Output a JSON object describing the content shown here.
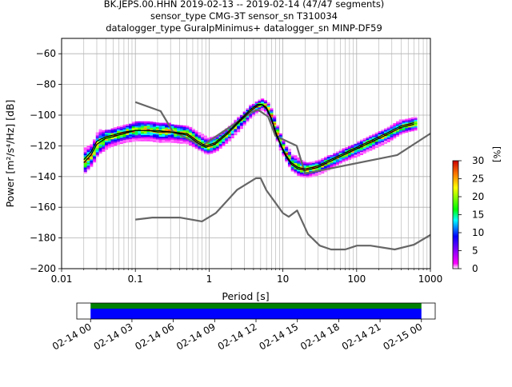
{
  "title": {
    "line1": "BK.JEPS.00.HHN   2019-02-13 -- 2019-02-14  (47/47 segments)",
    "line2": "sensor_type CMG-3T sensor_sn T310034",
    "line3": "datalogger_type GuralpMinimus+ datalogger_sn MINP-DF59"
  },
  "chart_data": [
    {
      "type": "heatmap",
      "title": "BK.JEPS.00.HHN   2019-02-13 -- 2019-02-14  (47/47 segments)",
      "xlabel": "Period [s]",
      "ylabel": "Power [m²/s⁴/Hz] [dB]",
      "xscale": "log",
      "xlim": [
        0.01,
        1000
      ],
      "ylim": [
        -200,
        -50
      ],
      "x_ticks": [
        0.01,
        0.1,
        1,
        10,
        100,
        1000
      ],
      "x_tick_labels": [
        "0.01",
        "0.1",
        "1",
        "10",
        "100",
        "1000"
      ],
      "y_ticks": [
        -200,
        -180,
        -160,
        -140,
        -120,
        -100,
        -80,
        -60
      ],
      "y_tick_labels": [
        "−200",
        "−180",
        "−160",
        "−140",
        "−120",
        "−100",
        "−80",
        "−60"
      ],
      "grid": true,
      "colorbar": {
        "label": "[%]",
        "range": [
          0,
          30
        ],
        "ticks": [
          0,
          5,
          10,
          15,
          20,
          25,
          30
        ],
        "colormap": "pqlx"
      },
      "mode_curve": {
        "period": [
          0.02,
          0.025,
          0.03,
          0.04,
          0.05,
          0.07,
          0.1,
          0.15,
          0.2,
          0.3,
          0.5,
          0.7,
          0.9,
          1.2,
          1.8,
          2.5,
          3.5,
          4.5,
          5.2,
          6,
          7,
          8,
          9,
          10,
          11,
          13,
          16,
          20,
          25,
          30,
          40,
          60,
          100,
          150,
          250,
          400,
          600
        ],
        "power_db": [
          -131,
          -126,
          -119,
          -115,
          -114,
          -112,
          -110,
          -110,
          -111,
          -111,
          -113,
          -118,
          -121,
          -119,
          -112,
          -105,
          -98,
          -94,
          -93,
          -96,
          -103,
          -112,
          -118,
          -123,
          -127,
          -132,
          -135,
          -136,
          -135,
          -134,
          -131,
          -127,
          -122,
          -118,
          -113,
          -108,
          -106
        ]
      },
      "mean_curve": {
        "period": [
          0.02,
          0.025,
          0.03,
          0.04,
          0.05,
          0.07,
          0.1,
          0.15,
          0.2,
          0.3,
          0.5,
          0.7,
          0.9,
          1.2,
          1.8,
          2.5,
          3.5,
          4.5,
          5.2,
          6,
          7,
          8,
          9,
          10,
          11,
          13,
          16,
          20,
          25,
          30,
          40,
          60,
          100,
          150,
          250,
          400,
          600
        ],
        "power_db": [
          -129,
          -124,
          -117,
          -114,
          -113,
          -111,
          -110,
          -110,
          -110,
          -111,
          -112,
          -117,
          -120,
          -118,
          -111,
          -104,
          -97,
          -93,
          -93,
          -95,
          -102,
          -111,
          -117,
          -122,
          -126,
          -131,
          -134,
          -135,
          -134,
          -133,
          -130,
          -126,
          -121,
          -117,
          -112,
          -107,
          -105
        ]
      },
      "nhnm": {
        "period": [
          0.1,
          0.22,
          0.32,
          0.8,
          3.8,
          4.6,
          6.3,
          7.9,
          15.4,
          20,
          354.8,
          1000
        ],
        "power_db": [
          -91.5,
          -97.4,
          -110.5,
          -120,
          -98,
          -96.5,
          -101,
          -113.5,
          -120,
          -138,
          -126,
          -112
        ]
      },
      "nlnm": {
        "period": [
          0.1,
          0.17,
          0.4,
          0.8,
          1.24,
          2.4,
          4.3,
          5,
          6,
          10,
          12,
          15.6,
          21.9,
          31.6,
          45,
          70,
          101,
          154,
          328,
          600,
          1000
        ],
        "power_db": [
          -168,
          -166.7,
          -166.7,
          -169.2,
          -163.7,
          -148.6,
          -141.1,
          -141.1,
          -149,
          -163.8,
          -166.2,
          -162.1,
          -177.5,
          -185,
          -187.5,
          -187.5,
          -185,
          -185,
          -187.5,
          -184.4,
          -178
        ]
      },
      "density_band": {
        "period": [
          0.02,
          0.025,
          0.03,
          0.04,
          0.05,
          0.07,
          0.1,
          0.15,
          0.2,
          0.3,
          0.5,
          0.7,
          0.9,
          1.2,
          1.8,
          2.5,
          3.5,
          4.5,
          5.2,
          6,
          7,
          8,
          9,
          10,
          11,
          13,
          16,
          20,
          25,
          30,
          40,
          60,
          100,
          150,
          250,
          400,
          600
        ],
        "upper_db": [
          -122,
          -119,
          -110,
          -110,
          -109,
          -107,
          -104,
          -105,
          -105,
          -106,
          -108,
          -112,
          -115,
          -114,
          -108,
          -101,
          -94,
          -91,
          -90,
          -92,
          -98,
          -107,
          -113,
          -118,
          -121,
          -126,
          -129,
          -131,
          -131,
          -130,
          -127,
          -123,
          -118,
          -114,
          -109,
          -103,
          -102
        ],
        "lower_db": [
          -138,
          -133,
          -126,
          -122,
          -120,
          -118,
          -117,
          -117,
          -118,
          -118,
          -119,
          -123,
          -126,
          -124,
          -117,
          -110,
          -102,
          -98,
          -97,
          -100,
          -108,
          -117,
          -124,
          -128,
          -132,
          -137,
          -140,
          -141,
          -140,
          -139,
          -136,
          -131,
          -127,
          -123,
          -118,
          -112,
          -110
        ]
      }
    },
    {
      "type": "timeline",
      "xlim": [
        "2019-02-13 23:00",
        "2019-02-15 01:00"
      ],
      "data_coverage": [
        "2019-02-14 00:00",
        "2019-02-15 00:00"
      ],
      "x_tick_labels": [
        "02-14 00",
        "02-14 03",
        "02-14 06",
        "02-14 09",
        "02-14 12",
        "02-14 15",
        "02-14 18",
        "02-14 21",
        "02-15 00"
      ],
      "bar_colors": {
        "used": "#008000",
        "available": "#0000ff"
      }
    }
  ]
}
